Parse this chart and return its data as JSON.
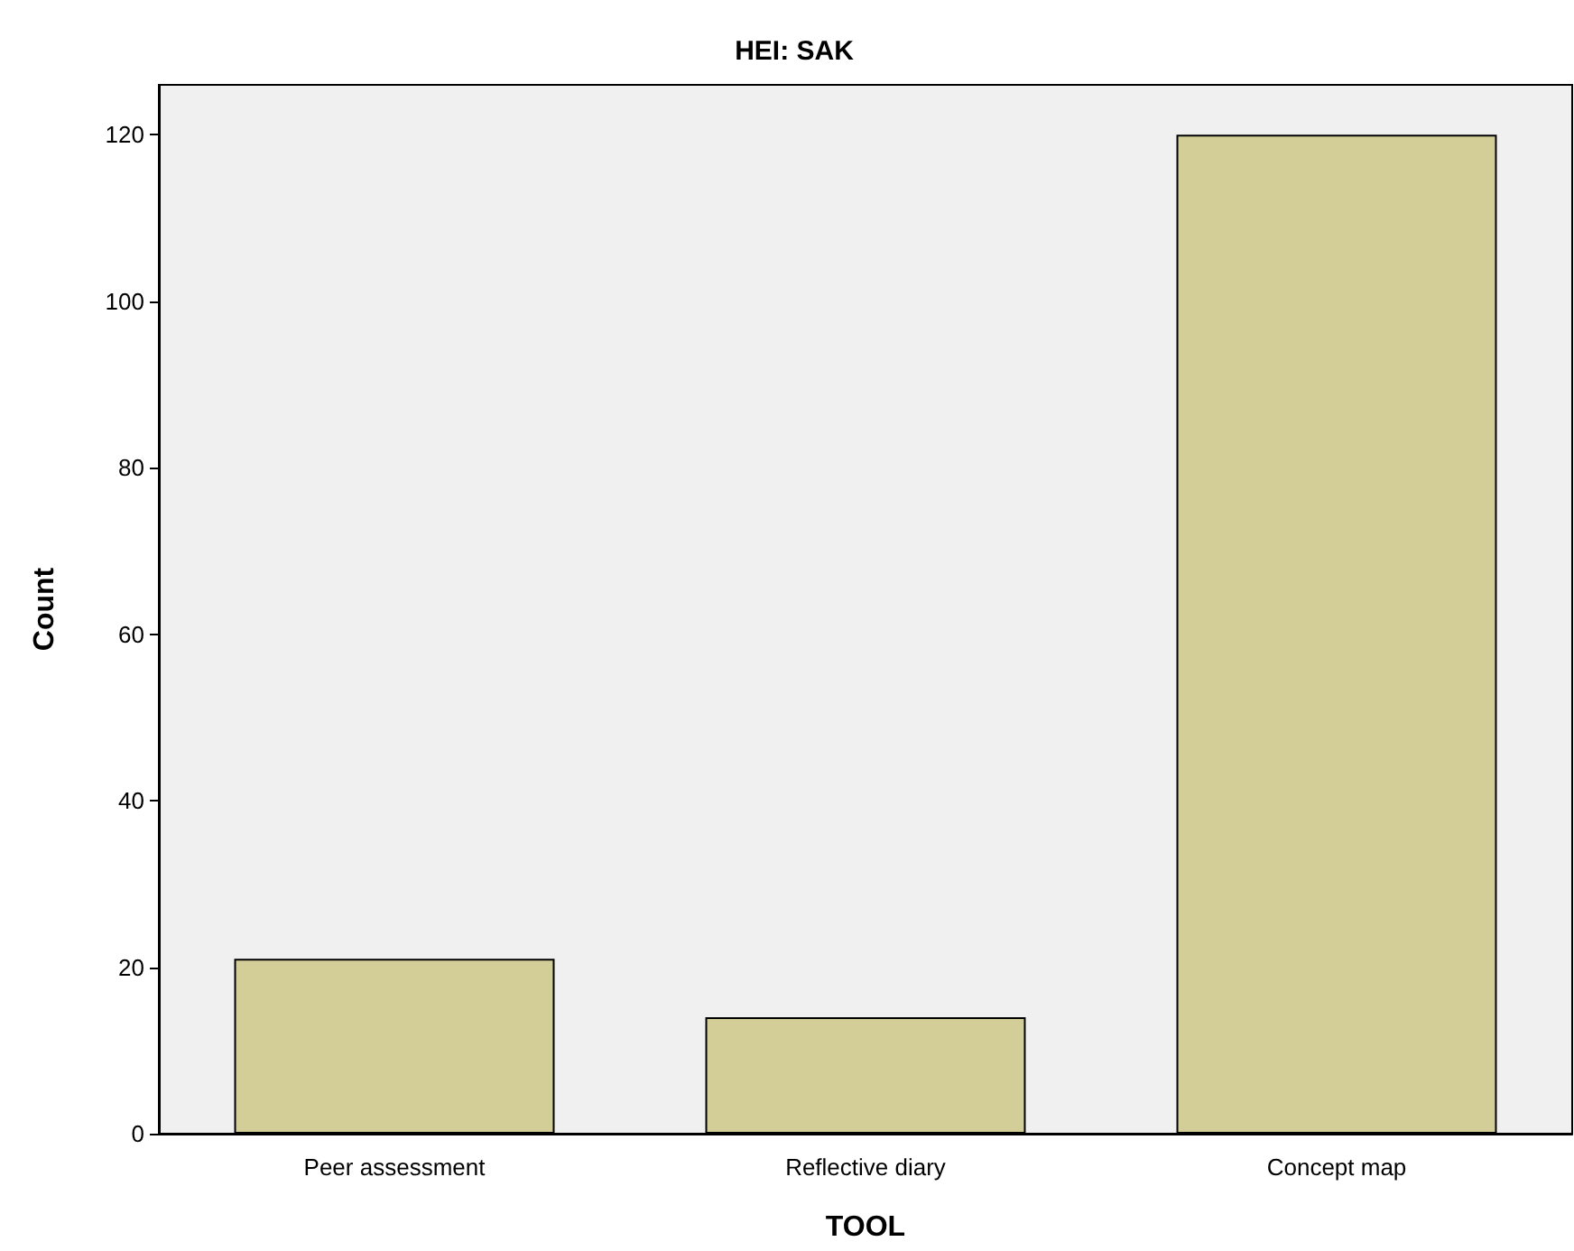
{
  "chart_data": {
    "type": "bar",
    "title": "HEI: SAK",
    "xlabel": "TOOL",
    "ylabel": "Count",
    "categories": [
      "Peer assessment",
      "Reflective diary",
      "Concept map"
    ],
    "values": [
      21,
      14,
      120
    ],
    "color": "#d3ce97",
    "ylim": [
      0,
      126
    ],
    "yticks": [
      0,
      20,
      40,
      60,
      80,
      100,
      120
    ]
  }
}
